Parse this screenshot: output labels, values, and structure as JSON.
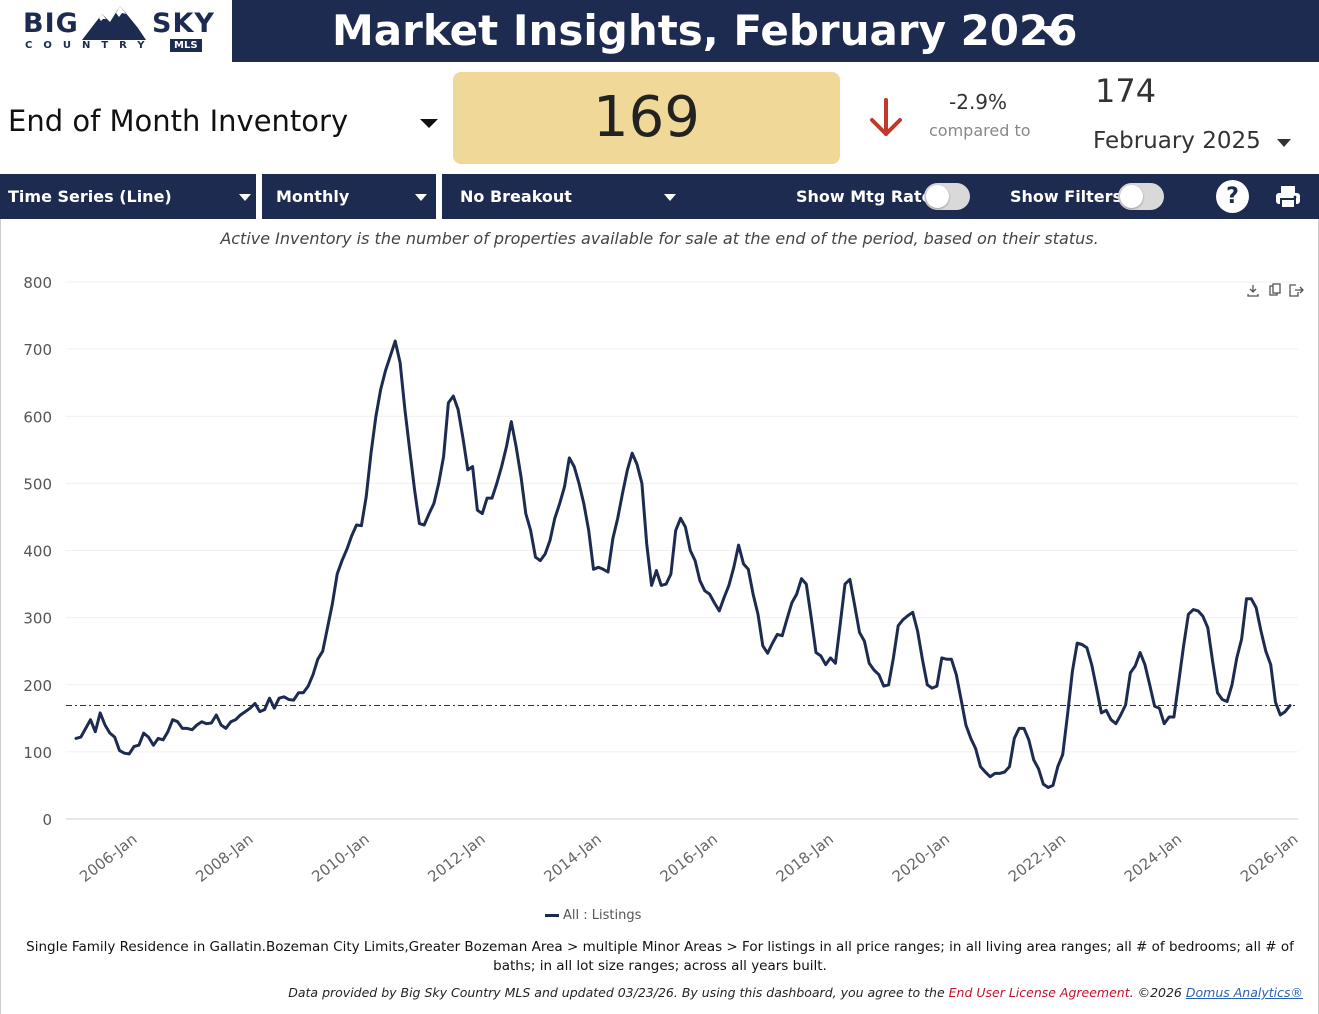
{
  "brand": {
    "big": "BIG",
    "sky": "SKY",
    "country": "COUNTRY",
    "mls": "MLS"
  },
  "header": {
    "title": "Market Insights, February 2026"
  },
  "kpi": {
    "metric_label": "End of Month Inventory",
    "value": "169",
    "change_pct": "-2.9%",
    "compared_to_label": "compared to",
    "prior_value": "174",
    "prior_period": "February 2025",
    "change_color": "#c0392b"
  },
  "toolbar": {
    "chart_type": "Time Series (Line)",
    "frequency": "Monthly",
    "breakout": "No Breakout",
    "show_mtg_rate": "Show Mtg Rate:",
    "show_filters": "Show Filters:",
    "help": "?"
  },
  "colors": {
    "navy": "#1d2b50",
    "kpi_bg": "#f0d898"
  },
  "description": "Active Inventory is the number of properties available for sale at the end of the period, based on their status.",
  "chart_data": {
    "type": "line",
    "y_ticks": [
      "800",
      "700",
      "600",
      "500",
      "400",
      "300",
      "200",
      "100",
      "0"
    ],
    "x_ticks": [
      "2006-Jan",
      "2008-Jan",
      "2010-Jan",
      "2012-Jan",
      "2014-Jan",
      "2016-Jan",
      "2018-Jan",
      "2020-Jan",
      "2022-Jan",
      "2024-Jan",
      "2026-Jan"
    ],
    "ylim": [
      0,
      800
    ],
    "x_start": "2005-Jan",
    "x_end": "2026-Feb",
    "reference_line": 169,
    "series": [
      {
        "name": "All : Listings",
        "color": "#1d2b50",
        "points": [
          [
            0,
            120
          ],
          [
            1,
            122
          ],
          [
            2,
            135
          ],
          [
            3,
            148
          ],
          [
            4,
            130
          ],
          [
            5,
            158
          ],
          [
            6,
            140
          ],
          [
            7,
            128
          ],
          [
            8,
            122
          ],
          [
            9,
            102
          ],
          [
            10,
            98
          ],
          [
            11,
            97
          ],
          [
            12,
            108
          ],
          [
            13,
            110
          ],
          [
            14,
            128
          ],
          [
            15,
            122
          ],
          [
            16,
            110
          ],
          [
            17,
            120
          ],
          [
            18,
            118
          ],
          [
            19,
            130
          ],
          [
            20,
            148
          ],
          [
            21,
            145
          ],
          [
            22,
            135
          ],
          [
            23,
            135
          ],
          [
            24,
            133
          ],
          [
            25,
            140
          ],
          [
            26,
            145
          ],
          [
            27,
            142
          ],
          [
            28,
            143
          ],
          [
            29,
            155
          ],
          [
            30,
            140
          ],
          [
            31,
            135
          ],
          [
            32,
            145
          ],
          [
            33,
            148
          ],
          [
            34,
            155
          ],
          [
            35,
            160
          ],
          [
            36,
            165
          ],
          [
            37,
            172
          ],
          [
            38,
            160
          ],
          [
            39,
            163
          ],
          [
            40,
            180
          ],
          [
            41,
            165
          ],
          [
            42,
            180
          ],
          [
            43,
            182
          ],
          [
            44,
            178
          ],
          [
            45,
            177
          ],
          [
            46,
            188
          ],
          [
            47,
            188
          ],
          [
            48,
            198
          ],
          [
            49,
            215
          ],
          [
            50,
            238
          ],
          [
            51,
            250
          ],
          [
            52,
            285
          ],
          [
            53,
            320
          ],
          [
            54,
            365
          ],
          [
            55,
            385
          ],
          [
            56,
            402
          ],
          [
            57,
            422
          ],
          [
            58,
            438
          ],
          [
            59,
            437
          ],
          [
            60,
            480
          ],
          [
            61,
            545
          ],
          [
            62,
            600
          ],
          [
            63,
            640
          ],
          [
            64,
            668
          ],
          [
            65,
            690
          ],
          [
            66,
            712
          ],
          [
            67,
            680
          ],
          [
            68,
            610
          ],
          [
            69,
            550
          ],
          [
            70,
            490
          ],
          [
            71,
            440
          ],
          [
            72,
            438
          ],
          [
            73,
            455
          ],
          [
            74,
            470
          ],
          [
            75,
            500
          ],
          [
            76,
            540
          ],
          [
            77,
            620
          ],
          [
            78,
            630
          ],
          [
            79,
            610
          ],
          [
            80,
            568
          ],
          [
            81,
            520
          ],
          [
            82,
            525
          ],
          [
            83,
            460
          ],
          [
            84,
            455
          ],
          [
            85,
            478
          ],
          [
            86,
            478
          ],
          [
            87,
            500
          ],
          [
            88,
            525
          ],
          [
            89,
            555
          ],
          [
            90,
            592
          ],
          [
            91,
            555
          ],
          [
            92,
            510
          ],
          [
            93,
            455
          ],
          [
            94,
            430
          ],
          [
            95,
            390
          ],
          [
            96,
            385
          ],
          [
            97,
            395
          ],
          [
            98,
            415
          ],
          [
            99,
            448
          ],
          [
            100,
            470
          ],
          [
            101,
            495
          ],
          [
            102,
            538
          ],
          [
            103,
            525
          ],
          [
            104,
            500
          ],
          [
            105,
            470
          ],
          [
            106,
            430
          ],
          [
            107,
            372
          ],
          [
            108,
            375
          ],
          [
            109,
            372
          ],
          [
            110,
            368
          ],
          [
            111,
            418
          ],
          [
            112,
            448
          ],
          [
            113,
            485
          ],
          [
            114,
            520
          ],
          [
            115,
            545
          ],
          [
            116,
            528
          ],
          [
            117,
            500
          ],
          [
            118,
            410
          ],
          [
            119,
            348
          ],
          [
            120,
            370
          ],
          [
            121,
            348
          ],
          [
            122,
            350
          ],
          [
            123,
            365
          ],
          [
            124,
            430
          ],
          [
            125,
            448
          ],
          [
            126,
            435
          ],
          [
            127,
            400
          ],
          [
            128,
            385
          ],
          [
            129,
            355
          ],
          [
            130,
            340
          ],
          [
            131,
            335
          ],
          [
            132,
            322
          ],
          [
            133,
            310
          ],
          [
            134,
            330
          ],
          [
            135,
            348
          ],
          [
            136,
            375
          ],
          [
            137,
            408
          ],
          [
            138,
            380
          ],
          [
            139,
            372
          ],
          [
            140,
            335
          ],
          [
            141,
            305
          ],
          [
            142,
            258
          ],
          [
            143,
            247
          ],
          [
            144,
            262
          ],
          [
            145,
            275
          ],
          [
            146,
            273
          ],
          [
            147,
            298
          ],
          [
            148,
            322
          ],
          [
            149,
            335
          ],
          [
            150,
            358
          ],
          [
            151,
            350
          ],
          [
            152,
            300
          ],
          [
            153,
            248
          ],
          [
            154,
            243
          ],
          [
            155,
            230
          ],
          [
            156,
            240
          ],
          [
            157,
            232
          ],
          [
            158,
            290
          ],
          [
            159,
            350
          ],
          [
            160,
            357
          ],
          [
            161,
            318
          ],
          [
            162,
            278
          ],
          [
            163,
            265
          ],
          [
            164,
            232
          ],
          [
            165,
            222
          ],
          [
            166,
            215
          ],
          [
            167,
            198
          ],
          [
            168,
            200
          ],
          [
            169,
            240
          ],
          [
            170,
            288
          ],
          [
            171,
            297
          ],
          [
            172,
            303
          ],
          [
            173,
            308
          ],
          [
            174,
            280
          ],
          [
            175,
            238
          ],
          [
            176,
            200
          ],
          [
            177,
            195
          ],
          [
            178,
            198
          ],
          [
            179,
            240
          ],
          [
            180,
            238
          ],
          [
            181,
            238
          ],
          [
            182,
            215
          ],
          [
            183,
            178
          ],
          [
            184,
            140
          ],
          [
            185,
            120
          ],
          [
            186,
            105
          ],
          [
            187,
            78
          ],
          [
            188,
            70
          ],
          [
            189,
            63
          ],
          [
            190,
            68
          ],
          [
            191,
            68
          ],
          [
            192,
            70
          ],
          [
            193,
            78
          ],
          [
            194,
            120
          ],
          [
            195,
            135
          ],
          [
            196,
            135
          ],
          [
            197,
            118
          ],
          [
            198,
            88
          ],
          [
            199,
            75
          ],
          [
            200,
            52
          ],
          [
            201,
            47
          ],
          [
            202,
            50
          ],
          [
            203,
            78
          ],
          [
            204,
            96
          ],
          [
            205,
            155
          ],
          [
            206,
            220
          ],
          [
            207,
            262
          ],
          [
            208,
            260
          ],
          [
            209,
            255
          ],
          [
            210,
            230
          ],
          [
            211,
            195
          ],
          [
            212,
            158
          ],
          [
            213,
            162
          ],
          [
            214,
            148
          ],
          [
            215,
            142
          ],
          [
            216,
            155
          ],
          [
            217,
            170
          ],
          [
            218,
            218
          ],
          [
            219,
            228
          ],
          [
            220,
            248
          ],
          [
            221,
            230
          ],
          [
            222,
            200
          ],
          [
            223,
            168
          ],
          [
            224,
            165
          ],
          [
            225,
            142
          ],
          [
            226,
            152
          ],
          [
            227,
            152
          ],
          [
            228,
            205
          ],
          [
            229,
            258
          ],
          [
            230,
            305
          ],
          [
            231,
            312
          ],
          [
            232,
            310
          ],
          [
            233,
            302
          ],
          [
            234,
            285
          ],
          [
            235,
            235
          ],
          [
            236,
            188
          ],
          [
            237,
            178
          ],
          [
            238,
            175
          ],
          [
            239,
            200
          ],
          [
            240,
            240
          ],
          [
            241,
            268
          ],
          [
            242,
            328
          ],
          [
            243,
            328
          ],
          [
            244,
            315
          ],
          [
            245,
            280
          ],
          [
            246,
            250
          ],
          [
            247,
            230
          ],
          [
            248,
            174
          ],
          [
            249,
            155
          ],
          [
            250,
            160
          ],
          [
            251,
            169
          ]
        ]
      }
    ]
  },
  "legend": {
    "label": "All : Listings"
  },
  "filters_text": "Single Family Residence in Gallatin.Bozeman City Limits,Greater Bozeman Area > multiple Minor Areas > For listings in all price ranges; in all living area ranges; all # of bedrooms; all # of baths; in all lot size ranges; across all years built.",
  "footer": {
    "text": "Data provided by Big Sky Country MLS and updated 03/23/26.  By using this dashboard, you agree to the",
    "eula": "End User License Agreement",
    "copyright": ".  ©2026",
    "domus": "Domus Analytics®"
  }
}
